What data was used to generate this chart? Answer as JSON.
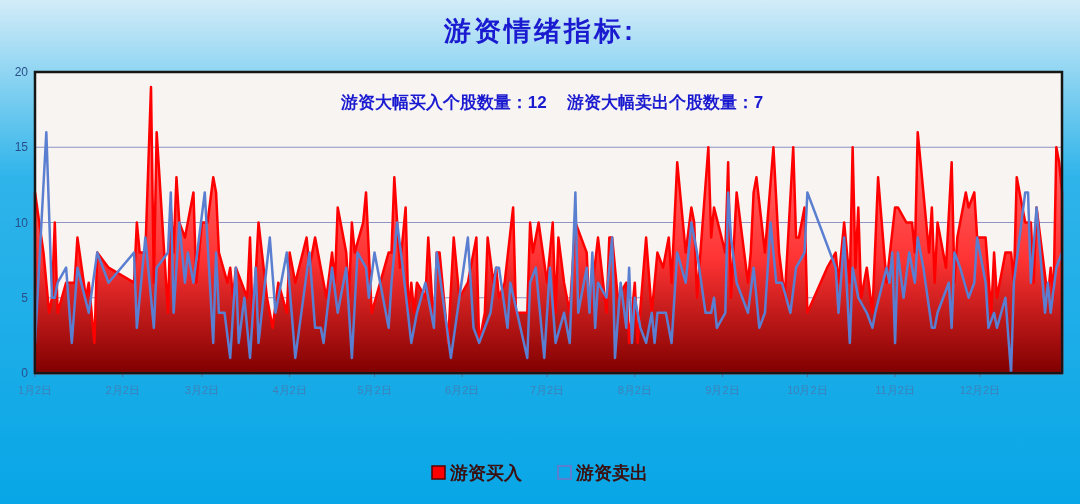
{
  "chart_data": {
    "type": "area",
    "title": "游资情绪指标:",
    "annotations": [
      "游资大幅买入个股数量：12",
      "游资大幅卖出个股数量：7"
    ],
    "xlim": [
      "--01-02",
      "--12-31"
    ],
    "xticks": [
      {
        "value": "--01-02",
        "label": "1月2日"
      },
      {
        "value": "--02-02",
        "label": "2月2日"
      },
      {
        "value": "--03-02",
        "label": "3月2日"
      },
      {
        "value": "--04-02",
        "label": "4月2日"
      },
      {
        "value": "--05-02",
        "label": "5月2日"
      },
      {
        "value": "--06-02",
        "label": "6月2日"
      },
      {
        "value": "--07-02",
        "label": "7月2日"
      },
      {
        "value": "--08-02",
        "label": "8月2日"
      },
      {
        "value": "--09-02",
        "label": "9月2日"
      },
      {
        "value": "--10-02",
        "label": "10月2日"
      },
      {
        "value": "--11-02",
        "label": "11月2日"
      },
      {
        "value": "--12-02",
        "label": "12月2日"
      }
    ],
    "ylim": [
      0,
      20
    ],
    "yticks": [
      0,
      5,
      10,
      15,
      20
    ],
    "grid": "y",
    "legend": "bottom",
    "series": [
      {
        "name": "游资买入",
        "color": "#ff0000",
        "x": [
          "--01-02",
          "--01-05",
          "--01-07",
          "--01-08",
          "--01-09",
          "--01-10",
          "--01-13",
          "--01-16",
          "--01-17",
          "--01-20",
          "--01-21",
          "--01-23",
          "--01-24",
          "--01-28",
          "--02-06",
          "--02-07",
          "--02-08",
          "--02-10",
          "--02-12",
          "--02-13",
          "--02-14",
          "--02-18",
          "--02-19",
          "--02-20",
          "--02-21",
          "--02-22",
          "--02-24",
          "--02-27",
          "--02-28",
          "--03-02",
          "--03-04",
          "--03-06",
          "--03-07",
          "--03-08",
          "--03-11",
          "--03-12",
          "--03-13",
          "--03-14",
          "--03-18",
          "--03-19",
          "--03-20",
          "--03-22",
          "--03-25",
          "--03-27",
          "--03-29",
          "--04-01",
          "--04-02",
          "--04-04",
          "--04-08",
          "--04-09",
          "--04-11",
          "--04-15",
          "--04-17",
          "--04-18",
          "--04-19",
          "--04-22",
          "--04-23",
          "--04-24",
          "--04-25",
          "--04-28",
          "--04-29",
          "--05-01",
          "--05-07",
          "--05-08",
          "--05-09",
          "--05-11",
          "--05-13",
          "--05-14",
          "--05-15",
          "--05-16",
          "--05-17",
          "--05-20",
          "--05-21",
          "--05-23",
          "--05-24",
          "--05-25",
          "--05-28",
          "--05-30",
          "--06-01",
          "--06-04",
          "--06-07",
          "--06-08",
          "--06-10",
          "--06-11",
          "--06-13",
          "--06-14",
          "--06-15",
          "--06-17",
          "--06-20",
          "--06-21",
          "--06-25",
          "--06-26",
          "--06-27",
          "--06-29",
          "--07-02",
          "--07-04",
          "--07-05",
          "--07-06",
          "--07-08",
          "--07-10",
          "--07-12",
          "--07-16",
          "--07-17",
          "--07-20",
          "--07-23",
          "--07-24",
          "--07-25",
          "--07-27",
          "--07-30",
          "--07-31",
          "--08-02",
          "--08-03",
          "--08-06",
          "--08-08",
          "--08-10",
          "--08-12",
          "--08-14",
          "--08-15",
          "--08-17",
          "--08-20",
          "--08-22",
          "--08-23",
          "--08-24",
          "--08-28",
          "--08-29",
          "--08-30",
          "--09-03",
          "--09-04",
          "--09-05",
          "--09-07",
          "--09-11",
          "--09-12",
          "--09-13",
          "--09-14",
          "--09-17",
          "--09-20",
          "--09-22",
          "--09-24",
          "--09-27",
          "--09-28",
          "--09-29",
          "--10-01",
          "--10-02",
          "--10-09",
          "--10-12",
          "--10-13",
          "--10-15",
          "--10-17",
          "--10-18",
          "--10-19",
          "--10-20",
          "--10-21",
          "--10-23",
          "--10-25",
          "--10-27",
          "--10-30",
          "--11-02",
          "--11-03",
          "--11-06",
          "--11-08",
          "--11-09",
          "--11-10",
          "--11-14",
          "--11-15",
          "--11-16",
          "--11-17",
          "--11-20",
          "--11-22",
          "--11-23",
          "--11-24",
          "--11-27",
          "--11-28",
          "--11-30",
          "--12-01",
          "--12-04",
          "--12-06",
          "--12-07",
          "--12-08",
          "--12-11",
          "--12-13",
          "--12-14",
          "--12-15",
          "--12-18",
          "--12-20",
          "--12-21",
          "--12-22",
          "--12-26",
          "--12-27",
          "--12-28",
          "--12-29",
          "--12-30",
          "--12-31"
        ],
        "values": [
          12,
          8,
          4,
          5,
          10,
          4,
          6,
          6,
          9,
          5,
          6,
          2,
          8,
          7,
          6,
          10,
          8,
          8,
          19,
          6,
          16,
          4,
          11,
          8,
          13,
          10,
          9,
          12,
          6,
          10,
          10,
          13,
          12,
          8,
          6,
          7,
          5,
          7,
          5,
          9,
          3,
          10,
          5,
          3,
          6,
          4,
          8,
          6,
          9,
          7,
          9,
          5,
          8,
          6,
          11,
          8,
          5,
          10,
          8,
          10,
          12,
          4,
          8,
          8,
          13,
          7,
          11,
          4,
          6,
          4,
          6,
          5,
          9,
          3,
          8,
          8,
          2,
          9,
          5,
          6,
          9,
          2,
          4,
          9,
          6,
          7,
          5,
          6,
          11,
          4,
          4,
          10,
          8,
          10,
          6,
          10,
          4,
          9,
          6,
          4,
          10,
          8,
          4,
          9,
          4,
          9,
          9,
          5,
          6,
          2,
          6,
          2,
          9,
          4,
          8,
          7,
          9,
          6,
          14,
          8,
          11,
          10,
          5,
          15,
          9,
          11,
          8,
          14,
          5,
          12,
          6,
          8,
          12,
          13,
          8,
          15,
          8,
          5,
          15,
          9,
          9,
          11,
          4,
          7,
          8,
          6,
          10,
          6,
          15,
          7,
          11,
          5,
          7,
          4,
          13,
          6,
          11,
          11,
          10,
          10,
          8,
          16,
          8,
          11,
          6,
          10,
          7,
          14,
          6,
          9,
          12,
          11,
          12,
          9,
          9,
          4,
          8,
          5,
          8,
          8,
          6,
          13,
          10,
          10,
          6,
          11,
          5,
          7,
          5,
          15,
          14,
          12
        ]
      },
      {
        "name": "游资卖出",
        "type": "line",
        "color": "#5b7fd0",
        "x": [
          "--01-02",
          "--01-06",
          "--01-08",
          "--01-09",
          "--01-10",
          "--01-13",
          "--01-15",
          "--01-17",
          "--01-21",
          "--01-24",
          "--01-28",
          "--02-06",
          "--02-07",
          "--02-10",
          "--02-13",
          "--02-14",
          "--02-18",
          "--02-19",
          "--02-20",
          "--02-22",
          "--02-24",
          "--02-25",
          "--02-27",
          "--03-03",
          "--03-06",
          "--03-07",
          "--03-08",
          "--03-10",
          "--03-12",
          "--03-14",
          "--03-15",
          "--03-17",
          "--03-19",
          "--03-21",
          "--03-22",
          "--03-26",
          "--03-28",
          "--03-30",
          "--04-01",
          "--04-04",
          "--04-09",
          "--04-11",
          "--04-13",
          "--04-14",
          "--04-17",
          "--04-19",
          "--04-22",
          "--04-24",
          "--04-26",
          "--04-29",
          "--04-30",
          "--05-02",
          "--05-07",
          "--05-08",
          "--05-10",
          "--05-12",
          "--05-15",
          "--05-17",
          "--05-20",
          "--05-23",
          "--05-24",
          "--05-29",
          "--06-01",
          "--06-04",
          "--06-06",
          "--06-08",
          "--06-12",
          "--06-14",
          "--06-15",
          "--06-18",
          "--06-19",
          "--06-25",
          "--06-26",
          "--06-28",
          "--07-01",
          "--07-03",
          "--07-05",
          "--07-08",
          "--07-10",
          "--07-12",
          "--07-13",
          "--07-16",
          "--07-17",
          "--07-18",
          "--07-19",
          "--07-20",
          "--07-23",
          "--07-25",
          "--07-26",
          "--07-28",
          "--07-30",
          "--07-31",
          "--08-01",
          "--08-02",
          "--08-04",
          "--08-06",
          "--08-08",
          "--08-09",
          "--08-10",
          "--08-13",
          "--08-15",
          "--08-17",
          "--08-20",
          "--08-22",
          "--08-24",
          "--08-27",
          "--08-29",
          "--08-30",
          "--08-31",
          "--09-03",
          "--09-04",
          "--09-05",
          "--09-07",
          "--09-11",
          "--09-13",
          "--09-15",
          "--09-17",
          "--09-19",
          "--09-21",
          "--09-23",
          "--09-26",
          "--09-28",
          "--10-01",
          "--10-02",
          "--10-12",
          "--10-13",
          "--10-15",
          "--10-17",
          "--10-18",
          "--10-20",
          "--10-23",
          "--10-25",
          "--10-26",
          "--10-30",
          "--10-31",
          "--11-01",
          "--11-02",
          "--11-03",
          "--11-05",
          "--11-07",
          "--11-09",
          "--11-10",
          "--11-12",
          "--11-15",
          "--11-16",
          "--11-17",
          "--11-19",
          "--11-21",
          "--11-22",
          "--11-23",
          "--11-25",
          "--11-28",
          "--11-30",
          "--12-01",
          "--12-04",
          "--12-05",
          "--12-07",
          "--12-08",
          "--12-11",
          "--12-13",
          "--12-14",
          "--12-18",
          "--12-19",
          "--12-20",
          "--12-22",
          "--12-25",
          "--12-26",
          "--12-27",
          "--12-29",
          "--12-31"
        ],
        "values": [
          2,
          16,
          5,
          5,
          6,
          7,
          2,
          7,
          4,
          8,
          6,
          8,
          3,
          9,
          3,
          7,
          8,
          12,
          4,
          10,
          6,
          8,
          6,
          12,
          2,
          8,
          4,
          4,
          1,
          7,
          2,
          5,
          1,
          7,
          2,
          9,
          4,
          6,
          8,
          1,
          8,
          3,
          3,
          2,
          7,
          4,
          7,
          1,
          8,
          7,
          5,
          8,
          3,
          6,
          10,
          7,
          2,
          4,
          6,
          3,
          8,
          1,
          5,
          9,
          3,
          2,
          4,
          7,
          7,
          3,
          6,
          1,
          6,
          7,
          1,
          7,
          2,
          4,
          2,
          12,
          4,
          7,
          4,
          8,
          3,
          6,
          5,
          9,
          1,
          6,
          3,
          7,
          2,
          5,
          3,
          2,
          4,
          2,
          4,
          4,
          2,
          8,
          6,
          10,
          8,
          4,
          4,
          5,
          3,
          4,
          12,
          9,
          6,
          4,
          7,
          3,
          4,
          10,
          6,
          6,
          4,
          7,
          8,
          12,
          7,
          4,
          9,
          2,
          7,
          5,
          4,
          3,
          4,
          7,
          6,
          8,
          2,
          8,
          5,
          8,
          6,
          9,
          7,
          3,
          3,
          4,
          5,
          6,
          3,
          8,
          7,
          5,
          6,
          9,
          6,
          3,
          4,
          3,
          5,
          0,
          6,
          12,
          12,
          6,
          11,
          4,
          6,
          4,
          7,
          8
        ]
      }
    ]
  }
}
